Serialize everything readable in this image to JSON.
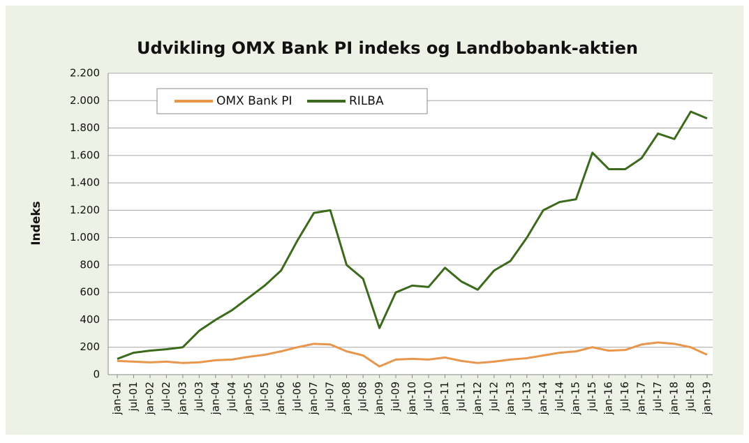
{
  "chart_data": {
    "type": "line",
    "title": "Udvikling OMX Bank PI indeks og Landbobank-aktien",
    "y_label": "Indeks",
    "categories": [
      "jan-01",
      "jul-01",
      "jan-02",
      "jul-02",
      "jan-03",
      "jul-03",
      "jan-04",
      "jul-04",
      "jan-05",
      "jul-05",
      "jan-06",
      "jul-06",
      "jan-07",
      "jul-07",
      "jan-08",
      "jul-08",
      "jan-09",
      "jul-09",
      "jan-10",
      "jul-10",
      "jan-11",
      "jul-11",
      "jan-12",
      "jul-12",
      "jan-13",
      "jul-13",
      "jan-14",
      "jul-14",
      "jan-15",
      "jul-15",
      "jan-16",
      "jul-16",
      "jan-17",
      "jul-17",
      "jan-18",
      "jul-18",
      "jan-19"
    ],
    "series": [
      {
        "name": "OMX Bank PI",
        "color": "#e8964c",
        "values": [
          100,
          95,
          90,
          95,
          85,
          90,
          105,
          110,
          130,
          145,
          170,
          200,
          225,
          220,
          170,
          140,
          60,
          110,
          115,
          110,
          125,
          100,
          85,
          95,
          110,
          120,
          140,
          160,
          170,
          200,
          175,
          180,
          220,
          235,
          225,
          200,
          145
        ]
      },
      {
        "name": "RILBA",
        "color": "#3b6a1c",
        "values": [
          115,
          160,
          175,
          185,
          200,
          320,
          400,
          470,
          560,
          650,
          760,
          980,
          1180,
          1200,
          800,
          700,
          340,
          600,
          650,
          640,
          780,
          680,
          620,
          760,
          830,
          1000,
          1200,
          1260,
          1280,
          1620,
          1500,
          1500,
          1580,
          1760,
          1720,
          1920,
          1870
        ]
      }
    ],
    "ylim": [
      0,
      2200
    ],
    "yticks": [
      0,
      200,
      400,
      600,
      800,
      {
        "value": 1000,
        "label": "1.000"
      },
      {
        "value": 1200,
        "label": "1.200"
      },
      {
        "value": 1400,
        "label": "1.400"
      },
      {
        "value": 1600,
        "label": "1.600"
      },
      {
        "value": 1800,
        "label": "1.800"
      },
      {
        "value": 2000,
        "label": "2.000"
      },
      {
        "value": 2200,
        "label": "2.200"
      }
    ],
    "grid": true,
    "legend": "upper left"
  }
}
